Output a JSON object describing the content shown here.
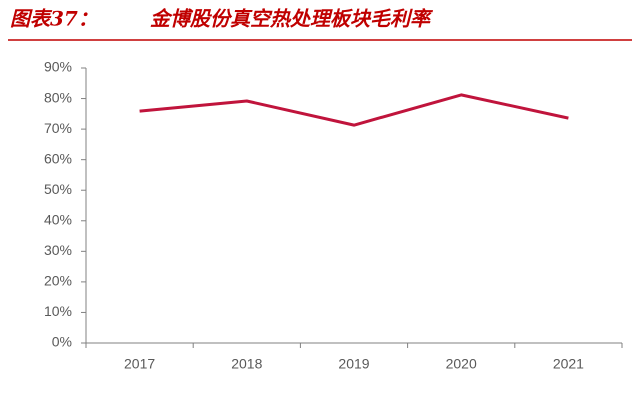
{
  "chart_data": {
    "type": "line",
    "figure_label": "图表37：",
    "title": "金博股份真空热处理板块毛利率",
    "categories": [
      "2017",
      "2018",
      "2019",
      "2020",
      "2021"
    ],
    "series": [
      {
        "name": "毛利率",
        "color": "#c0143c",
        "values": [
          75.9,
          79.2,
          71.3,
          81.2,
          73.6
        ]
      }
    ],
    "ylim": [
      0,
      90
    ],
    "yticks": [
      {
        "value": 0,
        "label": "0%"
      },
      {
        "value": 10,
        "label": "10%"
      },
      {
        "value": 20,
        "label": "20%"
      },
      {
        "value": 30,
        "label": "30%"
      },
      {
        "value": 40,
        "label": "40%"
      },
      {
        "value": 50,
        "label": "50%"
      },
      {
        "value": 60,
        "label": "60%"
      },
      {
        "value": 70,
        "label": "70%"
      },
      {
        "value": 80,
        "label": "80%"
      },
      {
        "value": 90,
        "label": "90%"
      }
    ],
    "grid": false,
    "legend": false
  }
}
